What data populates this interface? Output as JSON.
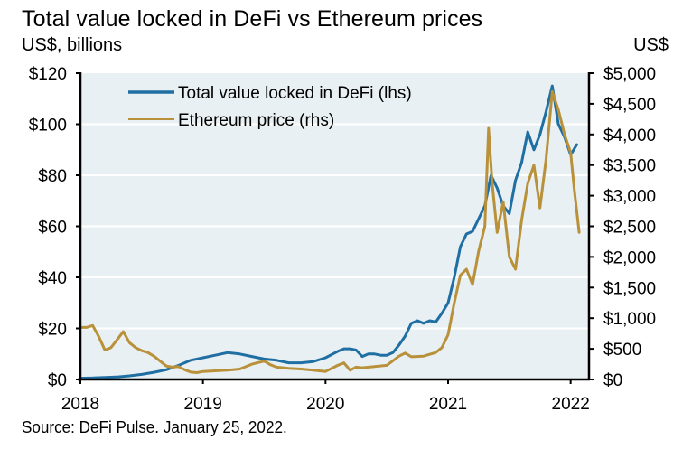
{
  "title": "Total value locked in DeFi vs Ethereum prices",
  "left_unit": "US$, billions",
  "right_unit": "US$",
  "source": "Source: DeFi Pulse. January 25, 2022.",
  "colors": {
    "tvl": "#1f6fa3",
    "eth": "#b8913a",
    "plot_bg": "#e9f0f3",
    "grid": "#ffffff",
    "axis": "#000000"
  },
  "chart_data": {
    "type": "line",
    "title": "Total value locked in DeFi vs Ethereum prices",
    "xlabel": "",
    "ylabel": "US$, billions",
    "y2label": "US$",
    "xlim": [
      2018,
      2022.15
    ],
    "ylim": [
      0,
      120
    ],
    "y2lim": [
      0,
      5000
    ],
    "grid": true,
    "legend_position": "top-left",
    "x_ticks": [
      2018,
      2019,
      2020,
      2021,
      2022
    ],
    "x_tick_labels": [
      "2018",
      "2019",
      "2020",
      "2021",
      "2022"
    ],
    "y_ticks": [
      0,
      20,
      40,
      60,
      80,
      100,
      120
    ],
    "y_tick_labels": [
      "$0",
      "$20",
      "$40",
      "$60",
      "$80",
      "$100",
      "$120"
    ],
    "y2_ticks": [
      0,
      500,
      1000,
      1500,
      2000,
      2500,
      3000,
      3500,
      4000,
      4500,
      5000
    ],
    "y2_tick_labels": [
      "$0",
      "$500",
      "$1,000",
      "$1,500",
      "$2,000",
      "$2,500",
      "$3,000",
      "$3,500",
      "$4,000",
      "$4,500",
      "$5,000"
    ],
    "series": [
      {
        "name": "Total value locked in DeFi (lhs)",
        "axis": "left",
        "x": [
          2018.0,
          2018.1,
          2018.2,
          2018.3,
          2018.4,
          2018.5,
          2018.6,
          2018.7,
          2018.8,
          2018.9,
          2019.0,
          2019.1,
          2019.2,
          2019.3,
          2019.4,
          2019.5,
          2019.6,
          2019.7,
          2019.8,
          2019.9,
          2020.0,
          2020.1,
          2020.15,
          2020.2,
          2020.25,
          2020.3,
          2020.35,
          2020.4,
          2020.45,
          2020.5,
          2020.55,
          2020.6,
          2020.65,
          2020.7,
          2020.75,
          2020.8,
          2020.85,
          2020.9,
          2020.95,
          2021.0,
          2021.05,
          2021.1,
          2021.15,
          2021.2,
          2021.25,
          2021.3,
          2021.35,
          2021.4,
          2021.45,
          2021.5,
          2021.55,
          2021.6,
          2021.65,
          2021.7,
          2021.75,
          2021.8,
          2021.85,
          2021.9,
          2021.95,
          2022.0,
          2022.05
        ],
        "values": [
          0.5,
          0.6,
          0.8,
          1.0,
          1.4,
          2.0,
          2.8,
          3.8,
          5.5,
          7.5,
          8.5,
          9.5,
          10.5,
          10.0,
          9.0,
          8.0,
          7.5,
          6.5,
          6.5,
          7.0,
          8.5,
          11.0,
          12.0,
          12.0,
          11.5,
          9.0,
          10.0,
          10.0,
          9.5,
          9.5,
          10.5,
          13.5,
          17.0,
          22.0,
          23.0,
          22.0,
          23.0,
          22.5,
          26.0,
          30.0,
          40.0,
          52.0,
          57.0,
          58.0,
          63.0,
          68.0,
          80.0,
          75.0,
          68.0,
          65.0,
          78.0,
          85.0,
          97.0,
          90.0,
          96.0,
          105.0,
          115.0,
          100.0,
          95.0,
          88.0,
          92.0
        ]
      },
      {
        "name": "Ethereum price (rhs)",
        "axis": "right",
        "x": [
          2018.0,
          2018.05,
          2018.1,
          2018.15,
          2018.2,
          2018.25,
          2018.3,
          2018.35,
          2018.4,
          2018.45,
          2018.5,
          2018.55,
          2018.6,
          2018.65,
          2018.7,
          2018.75,
          2018.8,
          2018.85,
          2018.9,
          2018.95,
          2019.0,
          2019.1,
          2019.2,
          2019.3,
          2019.4,
          2019.5,
          2019.55,
          2019.6,
          2019.7,
          2019.8,
          2019.9,
          2020.0,
          2020.1,
          2020.15,
          2020.2,
          2020.25,
          2020.3,
          2020.4,
          2020.5,
          2020.6,
          2020.65,
          2020.7,
          2020.8,
          2020.9,
          2020.95,
          2021.0,
          2021.05,
          2021.1,
          2021.15,
          2021.2,
          2021.25,
          2021.3,
          2021.33,
          2021.36,
          2021.4,
          2021.45,
          2021.5,
          2021.55,
          2021.6,
          2021.65,
          2021.7,
          2021.75,
          2021.8,
          2021.85,
          2021.9,
          2021.95,
          2022.0,
          2022.03,
          2022.07
        ],
        "values": [
          850,
          850,
          880,
          700,
          480,
          520,
          650,
          780,
          600,
          520,
          470,
          440,
          380,
          300,
          220,
          200,
          210,
          160,
          120,
          110,
          130,
          140,
          150,
          170,
          250,
          300,
          240,
          200,
          180,
          170,
          150,
          130,
          230,
          270,
          150,
          200,
          190,
          210,
          230,
          380,
          430,
          370,
          380,
          440,
          520,
          730,
          1250,
          1700,
          1800,
          1550,
          2100,
          2500,
          4100,
          3200,
          2400,
          2900,
          2000,
          1800,
          2600,
          3200,
          3500,
          2800,
          3600,
          4700,
          4400,
          4000,
          3700,
          3100,
          2400
        ]
      }
    ]
  },
  "legend": {
    "tvl_label": "Total value locked in DeFi (lhs)",
    "eth_label": "Ethereum price (rhs)"
  }
}
